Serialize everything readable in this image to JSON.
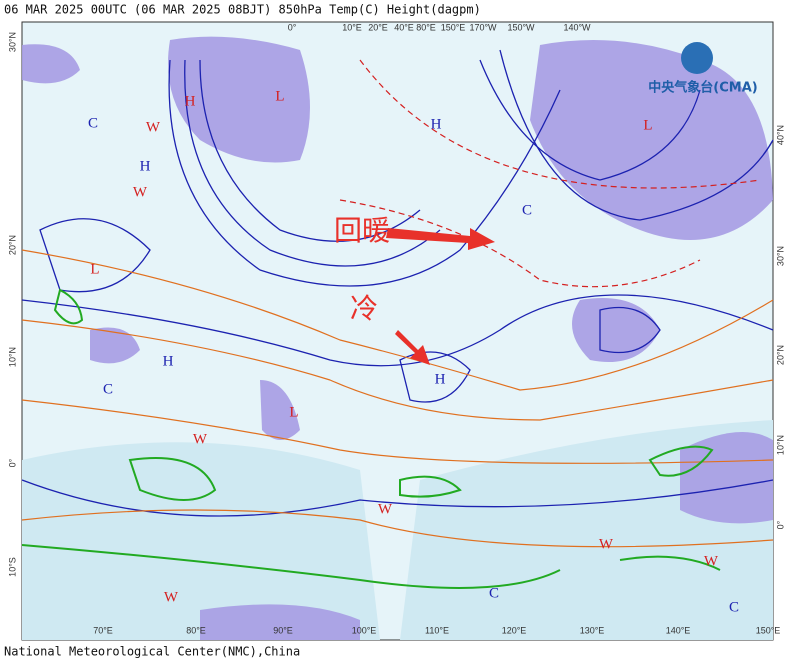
{
  "header": {
    "title": "06 MAR 2025 00UTC  (06 MAR 2025 08BJT) 850hPa Temp(C) Height(dagpm)"
  },
  "logo": {
    "text": "中央气象台(CMA)"
  },
  "annotations": [
    {
      "text": "回暖",
      "color": "#e8312a"
    },
    {
      "text": "冷",
      "color": "#e8312a"
    }
  ],
  "bottom_axis": [
    "70°E",
    "80°E",
    "90°E",
    "100°E",
    "110°E",
    "120°E",
    "130°E",
    "140°E",
    "150°E"
  ],
  "left_axis": [
    "30°N",
    "20°N",
    "10°N",
    "0°",
    "10°S"
  ],
  "right_axis": [
    "40°N",
    "30°N",
    "20°N",
    "10°N",
    "0°"
  ],
  "top_axis": [
    "0°",
    "10°E",
    "20°E",
    "40°E",
    "80°E",
    "150°E",
    "170°W",
    "150°W",
    "140°W"
  ],
  "systems": [
    {
      "text": "C",
      "color": "#1c22b0"
    },
    {
      "text": "W",
      "color": "#d42020"
    },
    {
      "text": "H",
      "color": "#1c22b0"
    },
    {
      "text": "W",
      "color": "#d42020"
    },
    {
      "text": "L",
      "color": "#d42020"
    },
    {
      "text": "H",
      "color": "#1c22b0"
    },
    {
      "text": "C",
      "color": "#1c22b0"
    },
    {
      "text": "W",
      "color": "#d42020"
    },
    {
      "text": "L",
      "color": "#d42020"
    },
    {
      "text": "H",
      "color": "#1c22b0"
    },
    {
      "text": "C",
      "color": "#1c22b0"
    },
    {
      "text": "L",
      "color": "#d42020"
    },
    {
      "text": "H",
      "color": "#1c22b0"
    },
    {
      "text": "W",
      "color": "#d42020"
    },
    {
      "text": "W",
      "color": "#d42020"
    },
    {
      "text": "W",
      "color": "#d42020"
    },
    {
      "text": "C",
      "color": "#1c22b0"
    },
    {
      "text": "W",
      "color": "#d42020"
    },
    {
      "text": "C",
      "color": "#1c22b0"
    },
    {
      "text": "L",
      "color": "#d42020"
    },
    {
      "text": "H",
      "color": "#d42020"
    }
  ],
  "footer": {
    "text": "National Meteorological Center(NMC),China"
  }
}
